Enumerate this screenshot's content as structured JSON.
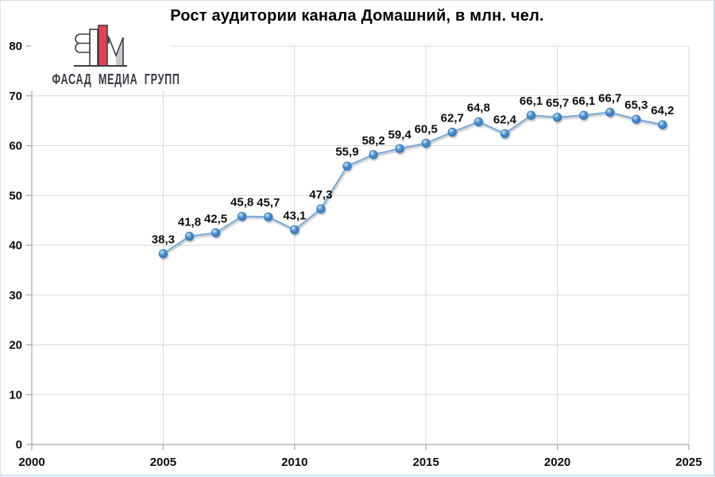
{
  "logo": {
    "text": "ФАСАД МЕДИА ГРУПП",
    "colors": {
      "red": "#e5404e",
      "gray": "#c9c9cd",
      "outline": "#3e3e48",
      "text": "#3a3a44"
    }
  },
  "chart_data": {
    "type": "line",
    "title": "Рост аудитории канала Домашний, в млн. чел.",
    "x": [
      2005,
      2006,
      2007,
      2008,
      2009,
      2010,
      2011,
      2012,
      2013,
      2014,
      2015,
      2016,
      2017,
      2018,
      2019,
      2020,
      2021,
      2022,
      2023,
      2024
    ],
    "values": [
      38.3,
      41.8,
      42.5,
      45.8,
      45.7,
      43.1,
      47.3,
      55.9,
      58.2,
      59.4,
      60.5,
      62.7,
      64.8,
      62.4,
      66.1,
      65.7,
      66.1,
      66.7,
      65.3,
      64.2
    ],
    "xlim": [
      2000,
      2025
    ],
    "ylim": [
      0,
      80
    ],
    "x_ticks": [
      2000,
      2005,
      2010,
      2015,
      2020,
      2025
    ],
    "y_ticks": [
      0,
      10,
      20,
      30,
      40,
      50,
      60,
      70,
      80
    ],
    "grid": true,
    "legend": false,
    "decimal_separator": ",",
    "data_labels": true
  },
  "colors": {
    "line": "#78a7da",
    "marker_dark": "#2e75b6",
    "marker_mid": "#4a90cf",
    "marker_light": "#cfe4f6",
    "grid": "#d9d9d9",
    "axis": "#a6a6a6",
    "text": "#0d0d0d"
  }
}
